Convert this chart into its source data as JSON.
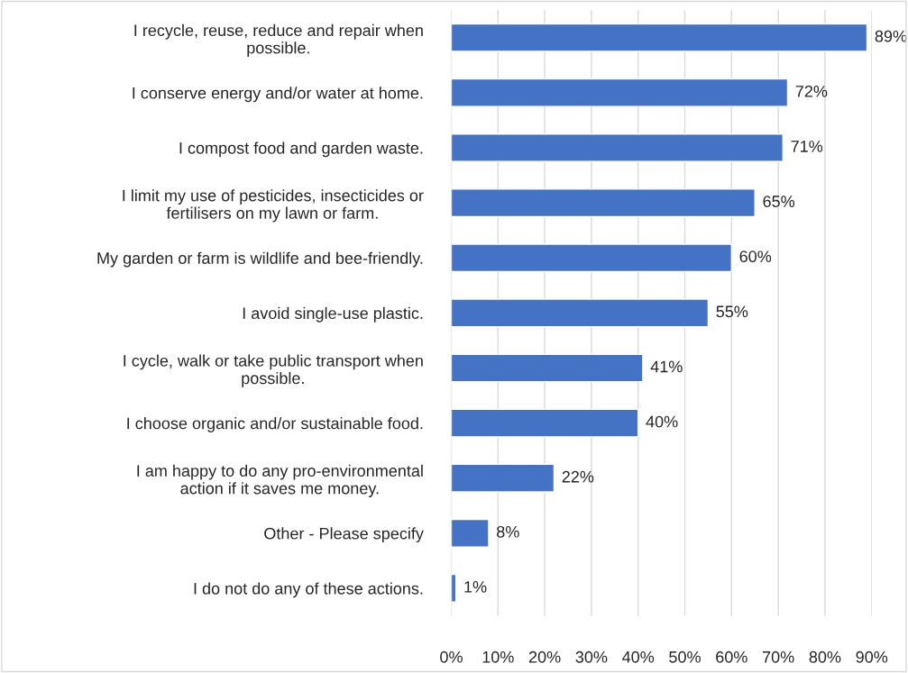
{
  "chart_data": {
    "type": "bar",
    "orientation": "horizontal",
    "categories": [
      "I recycle, reuse, reduce and repair when\npossible.",
      "I conserve energy and/or water at home.",
      "I compost food and garden waste.",
      "I limit my use of pesticides, insecticides or\nfertilisers on my lawn or farm.",
      "My garden or farm is wildlife and bee-friendly.",
      "I avoid single-use plastic.",
      "I cycle, walk or take public transport when\npossible.",
      "I choose organic and/or sustainable food.",
      "I am happy to do any pro-environmental\naction if it saves me money.",
      "Other - Please specify",
      "I do not do any of these actions."
    ],
    "values": [
      89,
      72,
      71,
      65,
      60,
      55,
      41,
      40,
      22,
      8,
      1
    ],
    "value_labels": [
      "89%",
      "72%",
      "71%",
      "65%",
      "60%",
      "55%",
      "41%",
      "40%",
      "22%",
      "8%",
      "1%"
    ],
    "color": "#4472c4",
    "xlim": [
      0,
      90
    ],
    "xticks": [
      {
        "value": 0,
        "label": "0%"
      },
      {
        "value": 10,
        "label": "10%"
      },
      {
        "value": 20,
        "label": "20%"
      },
      {
        "value": 30,
        "label": "30%"
      },
      {
        "value": 40,
        "label": "40%"
      },
      {
        "value": 50,
        "label": "50%"
      },
      {
        "value": 60,
        "label": "60%"
      },
      {
        "value": 70,
        "label": "70%"
      },
      {
        "value": 80,
        "label": "80%"
      },
      {
        "value": 90,
        "label": "90%"
      }
    ],
    "grid": "x"
  }
}
